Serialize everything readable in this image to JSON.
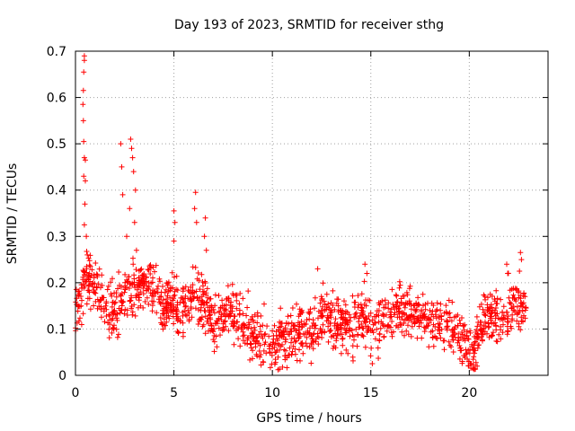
{
  "chart_data": {
    "type": "scatter",
    "title": "Day 193 of 2023, SRMTID for receiver sthg",
    "xlabel": "GPS time / hours",
    "ylabel": "SRMTID / TECUs",
    "xlim": [
      0,
      24
    ],
    "ylim": [
      0,
      0.7
    ],
    "xticks": [
      0,
      5,
      10,
      15,
      20
    ],
    "yticks": [
      0,
      0.1,
      0.2,
      0.3,
      0.4,
      0.5,
      0.6,
      0.7
    ],
    "grid": true,
    "marker": "+",
    "color": "#ff0000",
    "series": [
      {
        "name": "SRMTID",
        "profile": [
          [
            0.0,
            0.13
          ],
          [
            0.3,
            0.17
          ],
          [
            0.5,
            0.22
          ],
          [
            1.0,
            0.19
          ],
          [
            1.5,
            0.16
          ],
          [
            2.0,
            0.13
          ],
          [
            2.5,
            0.17
          ],
          [
            3.0,
            0.18
          ],
          [
            3.5,
            0.2
          ],
          [
            4.0,
            0.18
          ],
          [
            4.5,
            0.15
          ],
          [
            5.0,
            0.16
          ],
          [
            5.5,
            0.14
          ],
          [
            6.0,
            0.17
          ],
          [
            6.5,
            0.16
          ],
          [
            7.0,
            0.12
          ],
          [
            7.5,
            0.13
          ],
          [
            8.0,
            0.14
          ],
          [
            8.5,
            0.11
          ],
          [
            9.0,
            0.1
          ],
          [
            9.5,
            0.08
          ],
          [
            10.0,
            0.07
          ],
          [
            10.5,
            0.08
          ],
          [
            11.0,
            0.08
          ],
          [
            11.5,
            0.1
          ],
          [
            12.0,
            0.09
          ],
          [
            12.5,
            0.13
          ],
          [
            13.0,
            0.12
          ],
          [
            13.5,
            0.12
          ],
          [
            14.0,
            0.1
          ],
          [
            14.5,
            0.14
          ],
          [
            15.0,
            0.1
          ],
          [
            15.5,
            0.12
          ],
          [
            16.0,
            0.13
          ],
          [
            16.5,
            0.14
          ],
          [
            17.0,
            0.14
          ],
          [
            17.5,
            0.13
          ],
          [
            18.0,
            0.11
          ],
          [
            18.5,
            0.12
          ],
          [
            19.0,
            0.1
          ],
          [
            19.5,
            0.08
          ],
          [
            20.0,
            0.05
          ],
          [
            20.3,
            0.05
          ],
          [
            20.6,
            0.12
          ],
          [
            21.0,
            0.13
          ],
          [
            21.5,
            0.12
          ],
          [
            22.0,
            0.14
          ],
          [
            22.5,
            0.15
          ],
          [
            22.9,
            0.14
          ]
        ],
        "values": [
          {
            "x": 0.45,
            "y": 0.69
          },
          {
            "x": 0.45,
            "y": 0.68
          },
          {
            "x": 0.42,
            "y": 0.655
          },
          {
            "x": 0.4,
            "y": 0.615
          },
          {
            "x": 0.38,
            "y": 0.585
          },
          {
            "x": 0.4,
            "y": 0.55
          },
          {
            "x": 0.42,
            "y": 0.505
          },
          {
            "x": 0.45,
            "y": 0.47
          },
          {
            "x": 0.5,
            "y": 0.465
          },
          {
            "x": 0.42,
            "y": 0.43
          },
          {
            "x": 0.5,
            "y": 0.42
          },
          {
            "x": 0.48,
            "y": 0.37
          },
          {
            "x": 0.45,
            "y": 0.325
          },
          {
            "x": 0.55,
            "y": 0.3
          },
          {
            "x": 0.6,
            "y": 0.26
          },
          {
            "x": 2.3,
            "y": 0.5
          },
          {
            "x": 2.35,
            "y": 0.45
          },
          {
            "x": 2.4,
            "y": 0.39
          },
          {
            "x": 2.8,
            "y": 0.51
          },
          {
            "x": 2.85,
            "y": 0.49
          },
          {
            "x": 2.9,
            "y": 0.47
          },
          {
            "x": 2.95,
            "y": 0.44
          },
          {
            "x": 3.05,
            "y": 0.4
          },
          {
            "x": 2.75,
            "y": 0.36
          },
          {
            "x": 3.0,
            "y": 0.33
          },
          {
            "x": 2.6,
            "y": 0.3
          },
          {
            "x": 3.1,
            "y": 0.27
          },
          {
            "x": 5.0,
            "y": 0.355
          },
          {
            "x": 5.05,
            "y": 0.33
          },
          {
            "x": 5.0,
            "y": 0.29
          },
          {
            "x": 6.1,
            "y": 0.395
          },
          {
            "x": 6.05,
            "y": 0.36
          },
          {
            "x": 6.15,
            "y": 0.33
          },
          {
            "x": 6.6,
            "y": 0.34
          },
          {
            "x": 6.55,
            "y": 0.3
          },
          {
            "x": 6.65,
            "y": 0.27
          },
          {
            "x": 14.7,
            "y": 0.24
          },
          {
            "x": 14.8,
            "y": 0.22
          },
          {
            "x": 12.3,
            "y": 0.23
          },
          {
            "x": 22.6,
            "y": 0.265
          },
          {
            "x": 22.65,
            "y": 0.25
          },
          {
            "x": 22.55,
            "y": 0.225
          },
          {
            "x": 21.9,
            "y": 0.24
          },
          {
            "x": 21.95,
            "y": 0.22
          },
          {
            "x": 20.4,
            "y": 0.02
          },
          {
            "x": 20.1,
            "y": 0.025
          },
          {
            "x": 19.9,
            "y": 0.035
          }
        ]
      }
    ]
  }
}
